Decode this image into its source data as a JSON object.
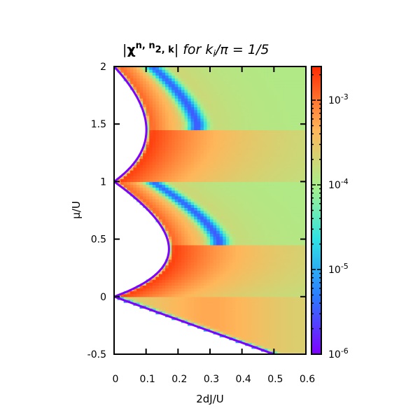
{
  "chart_data": {
    "type": "heatmap",
    "title": {
      "abs_open": "|",
      "chi": "χ",
      "sup": "n, n",
      "sub": "2, k",
      "abs_close": "|",
      "for_word": "for k",
      "k_sub": "i",
      "rest": "/π = 1/5"
    },
    "xlabel": "2dJ/U",
    "ylabel": "μ/U",
    "xlim": [
      0,
      0.6
    ],
    "ylim": [
      -0.5,
      2
    ],
    "x_ticks": [
      "0",
      "0.1",
      "0.2",
      "0.3",
      "0.4",
      "0.5",
      "0.6"
    ],
    "x_tick_values": [
      0,
      0.1,
      0.2,
      0.3,
      0.4,
      0.5,
      0.6
    ],
    "y_ticks": [
      "-0.5",
      "0",
      "0.5",
      "1",
      "1.5",
      "2"
    ],
    "y_tick_values": [
      -0.5,
      0,
      0.5,
      1,
      1.5,
      2
    ],
    "colorbar": {
      "scale": "log",
      "range": [
        1e-06,
        0.0025
      ],
      "labels": [
        {
          "base": "10",
          "exp": "-3",
          "value": 0.001
        },
        {
          "base": "10",
          "exp": "-4",
          "value": 0.0001
        },
        {
          "base": "10",
          "exp": "-5",
          "value": 1e-05
        },
        {
          "base": "10",
          "exp": "-6",
          "value": 1e-06
        }
      ],
      "colormap": [
        "#7f00ff",
        "#2a7bff",
        "#2fe3e3",
        "#a6f08c",
        "#ffb65a",
        "#ff2a00"
      ]
    },
    "mott_lobes": [
      {
        "n": 1,
        "mu_bottom": 0,
        "mu_top": 1,
        "tip_2dJ": 0.172,
        "tip_mu": 0.414
      },
      {
        "n": 2,
        "mu_bottom": 1,
        "mu_top": 2,
        "tip_2dJ": 0.1,
        "tip_mu": 1.449
      }
    ],
    "grid": false,
    "legend": "colorbar-right"
  }
}
